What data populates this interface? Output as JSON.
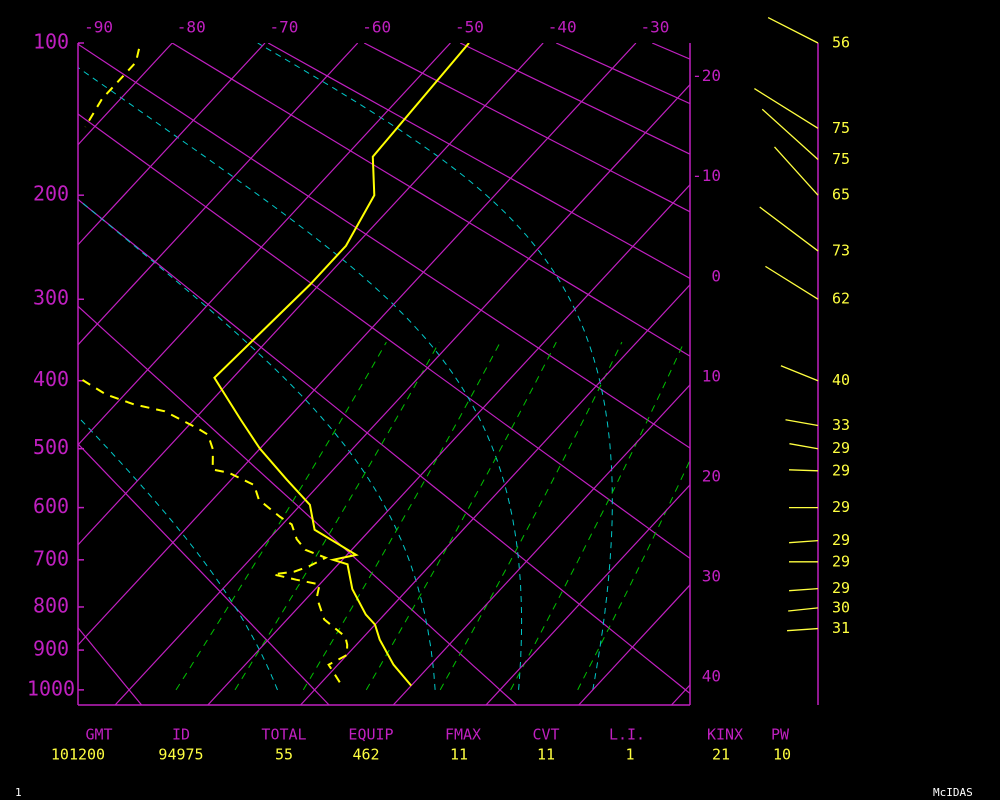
{
  "chart_data": {
    "type": "skewt",
    "ylim": [
      1040,
      100
    ],
    "yticks": [
      100,
      200,
      300,
      400,
      500,
      600,
      700,
      800,
      900,
      1000
    ],
    "xlim": [
      -24,
      42
    ],
    "xticks": [
      -90,
      -80,
      -70,
      -60,
      -50,
      -40,
      -30,
      -20,
      -10,
      0,
      10,
      20,
      30,
      40
    ],
    "axis_color": "#c020c0",
    "moist_adiabat_color": "#00c8c8",
    "mixing_ratio_color": "#00c000",
    "series": [
      {
        "color": "#ffff00",
        "dashed": false,
        "y": [
          100,
          170,
          200,
          245,
          284,
          396,
          455,
          500,
          551,
          595,
          641,
          690,
          700,
          709,
          761,
          817,
          840,
          875,
          936,
          989
        ],
        "x": [
          -48,
          -47,
          -43,
          -41,
          -41,
          -42,
          -35,
          -30,
          -24,
          -19,
          -16,
          -9,
          -11,
          -9,
          -6,
          -2,
          0,
          2,
          6,
          10
        ]
      },
      {
        "color": "#ffff00",
        "dashed": true,
        "y": [
          103,
          110,
          120,
          131,
          149,
          null,
          399,
          419,
          433,
          443,
          467,
          478,
          501,
          534,
          539,
          560,
          586,
          617,
          631,
          659,
          680,
          696,
          714,
          724,
          730,
          741,
          751,
          779,
          828,
          868,
          887,
          912,
          936,
          981
        ],
        "x": [
          -83,
          -82,
          -82,
          -82,
          -81,
          null,
          -56,
          -52,
          -48,
          -44,
          -39,
          -37,
          -35,
          -33,
          -31,
          -27,
          -25,
          -21,
          -19,
          -17,
          -15,
          -12,
          -13,
          -14,
          -16,
          -13,
          -10,
          -9,
          -6,
          -2,
          -1,
          0,
          -1,
          2
        ]
      }
    ],
    "winds": {
      "color": "#ffff40",
      "pressure": [
        100,
        150,
        172,
        200,
        250,
        300,
        400,
        464,
        500,
        536,
        600,
        662,
        704,
        760,
        802,
        849
      ],
      "speed": [
        56,
        75,
        75,
        65,
        73,
        62,
        40,
        33,
        29,
        29,
        29,
        29,
        29,
        29,
        30,
        31
      ],
      "direction": [
        297,
        302,
        312,
        318,
        307,
        302,
        292,
        280,
        280,
        272,
        270,
        266,
        270,
        266,
        264,
        266
      ]
    }
  },
  "stats": {
    "headers": [
      "GMT",
      "ID",
      "TOTAL",
      "EQUIP",
      "FMAX",
      "CVT",
      "L.I.",
      "KINX",
      "PW"
    ],
    "values": [
      "101200",
      "94975",
      55,
      462,
      11,
      11,
      1,
      21,
      10
    ]
  },
  "footer": {
    "left": "1",
    "right": "McIDAS"
  }
}
